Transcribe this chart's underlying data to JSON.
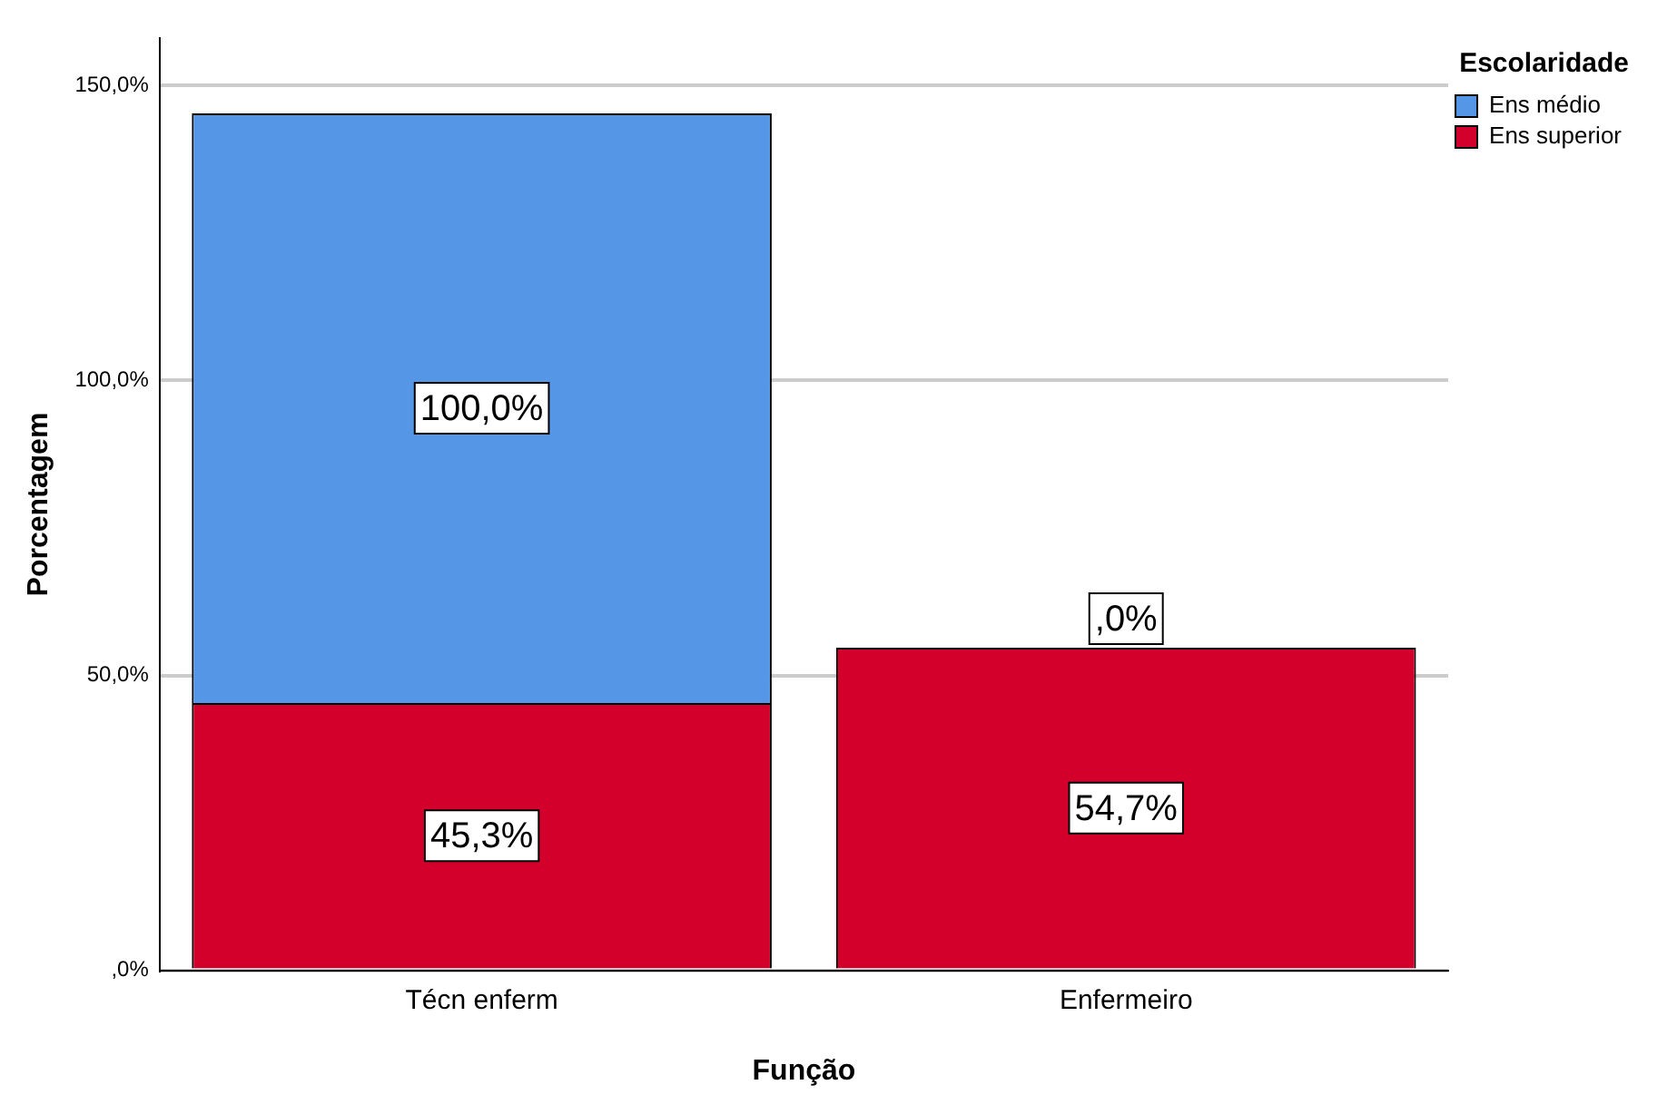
{
  "chart_data": {
    "type": "bar",
    "stacked": true,
    "xlabel": "Função",
    "ylabel": "Porcentagem",
    "legend_title": "Escolaridade",
    "legend": "top right",
    "grid": "y",
    "categories": [
      "Técn enferm",
      "Enfermeiro"
    ],
    "series": [
      {
        "name": "Ens superior",
        "color": "#d3002c",
        "values": [
          45.3,
          54.7
        ],
        "value_labels": [
          "45,3%",
          "54,7%"
        ]
      },
      {
        "name": "Ens médio",
        "color": "#5596e6",
        "values": [
          100.0,
          0.0
        ],
        "value_labels": [
          "100,0%",
          ",0%"
        ]
      }
    ],
    "ylim": [
      0,
      158
    ],
    "yticks": [
      {
        "value": 0,
        "label": ",0%"
      },
      {
        "value": 50,
        "label": "50,0%"
      },
      {
        "value": 100,
        "label": "100,0%"
      },
      {
        "value": 150,
        "label": "150,0%"
      }
    ]
  }
}
